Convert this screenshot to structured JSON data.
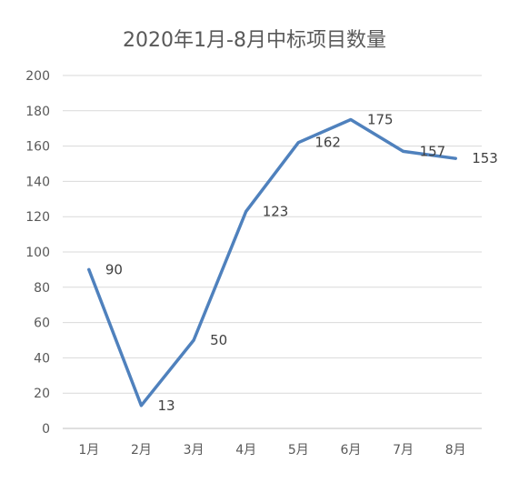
{
  "chart_data": {
    "type": "line",
    "title": "2020年1月-8月中标项目数量",
    "categories": [
      "1月",
      "2月",
      "3月",
      "4月",
      "5月",
      "6月",
      "7月",
      "8月"
    ],
    "series": [
      {
        "values": [
          90,
          13,
          50,
          123,
          162,
          175,
          157,
          153
        ],
        "color": "#4f81bd"
      }
    ],
    "ylim": [
      0,
      200
    ],
    "yticks": [
      0,
      20,
      40,
      60,
      80,
      100,
      120,
      140,
      160,
      180,
      200
    ],
    "grid": true,
    "legend": "none",
    "data_labels": true
  }
}
